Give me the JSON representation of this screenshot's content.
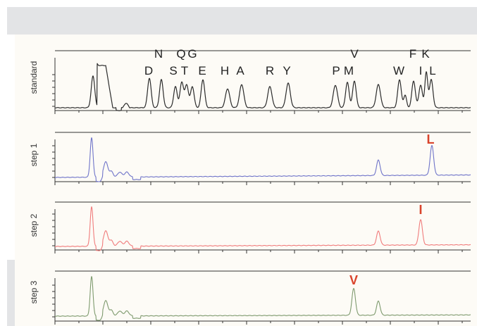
{
  "chart_data": [
    {
      "type": "line",
      "name": "standard",
      "ylabel": "standard",
      "color": "#2b2b2b",
      "peak_labels": [
        "D",
        "N",
        "S",
        "T",
        "Q",
        "G",
        "E",
        "H",
        "A",
        "R",
        "Y",
        "P",
        "M",
        "V",
        "W",
        "F",
        "I",
        "K",
        "L"
      ],
      "marker_label": ""
    },
    {
      "type": "line",
      "name": "step 1",
      "ylabel": "step 1",
      "color": "#6f74c9",
      "marker_label": "L",
      "marker_color": "#d9432b"
    },
    {
      "type": "line",
      "name": "step 2",
      "ylabel": "step 2",
      "color": "#f07c7c",
      "marker_label": "I",
      "marker_color": "#d9432b"
    },
    {
      "type": "line",
      "name": "step 3",
      "ylabel": "step 3",
      "color": "#7e9a6e",
      "marker_label": "V",
      "marker_color": "#d9432b"
    }
  ]
}
